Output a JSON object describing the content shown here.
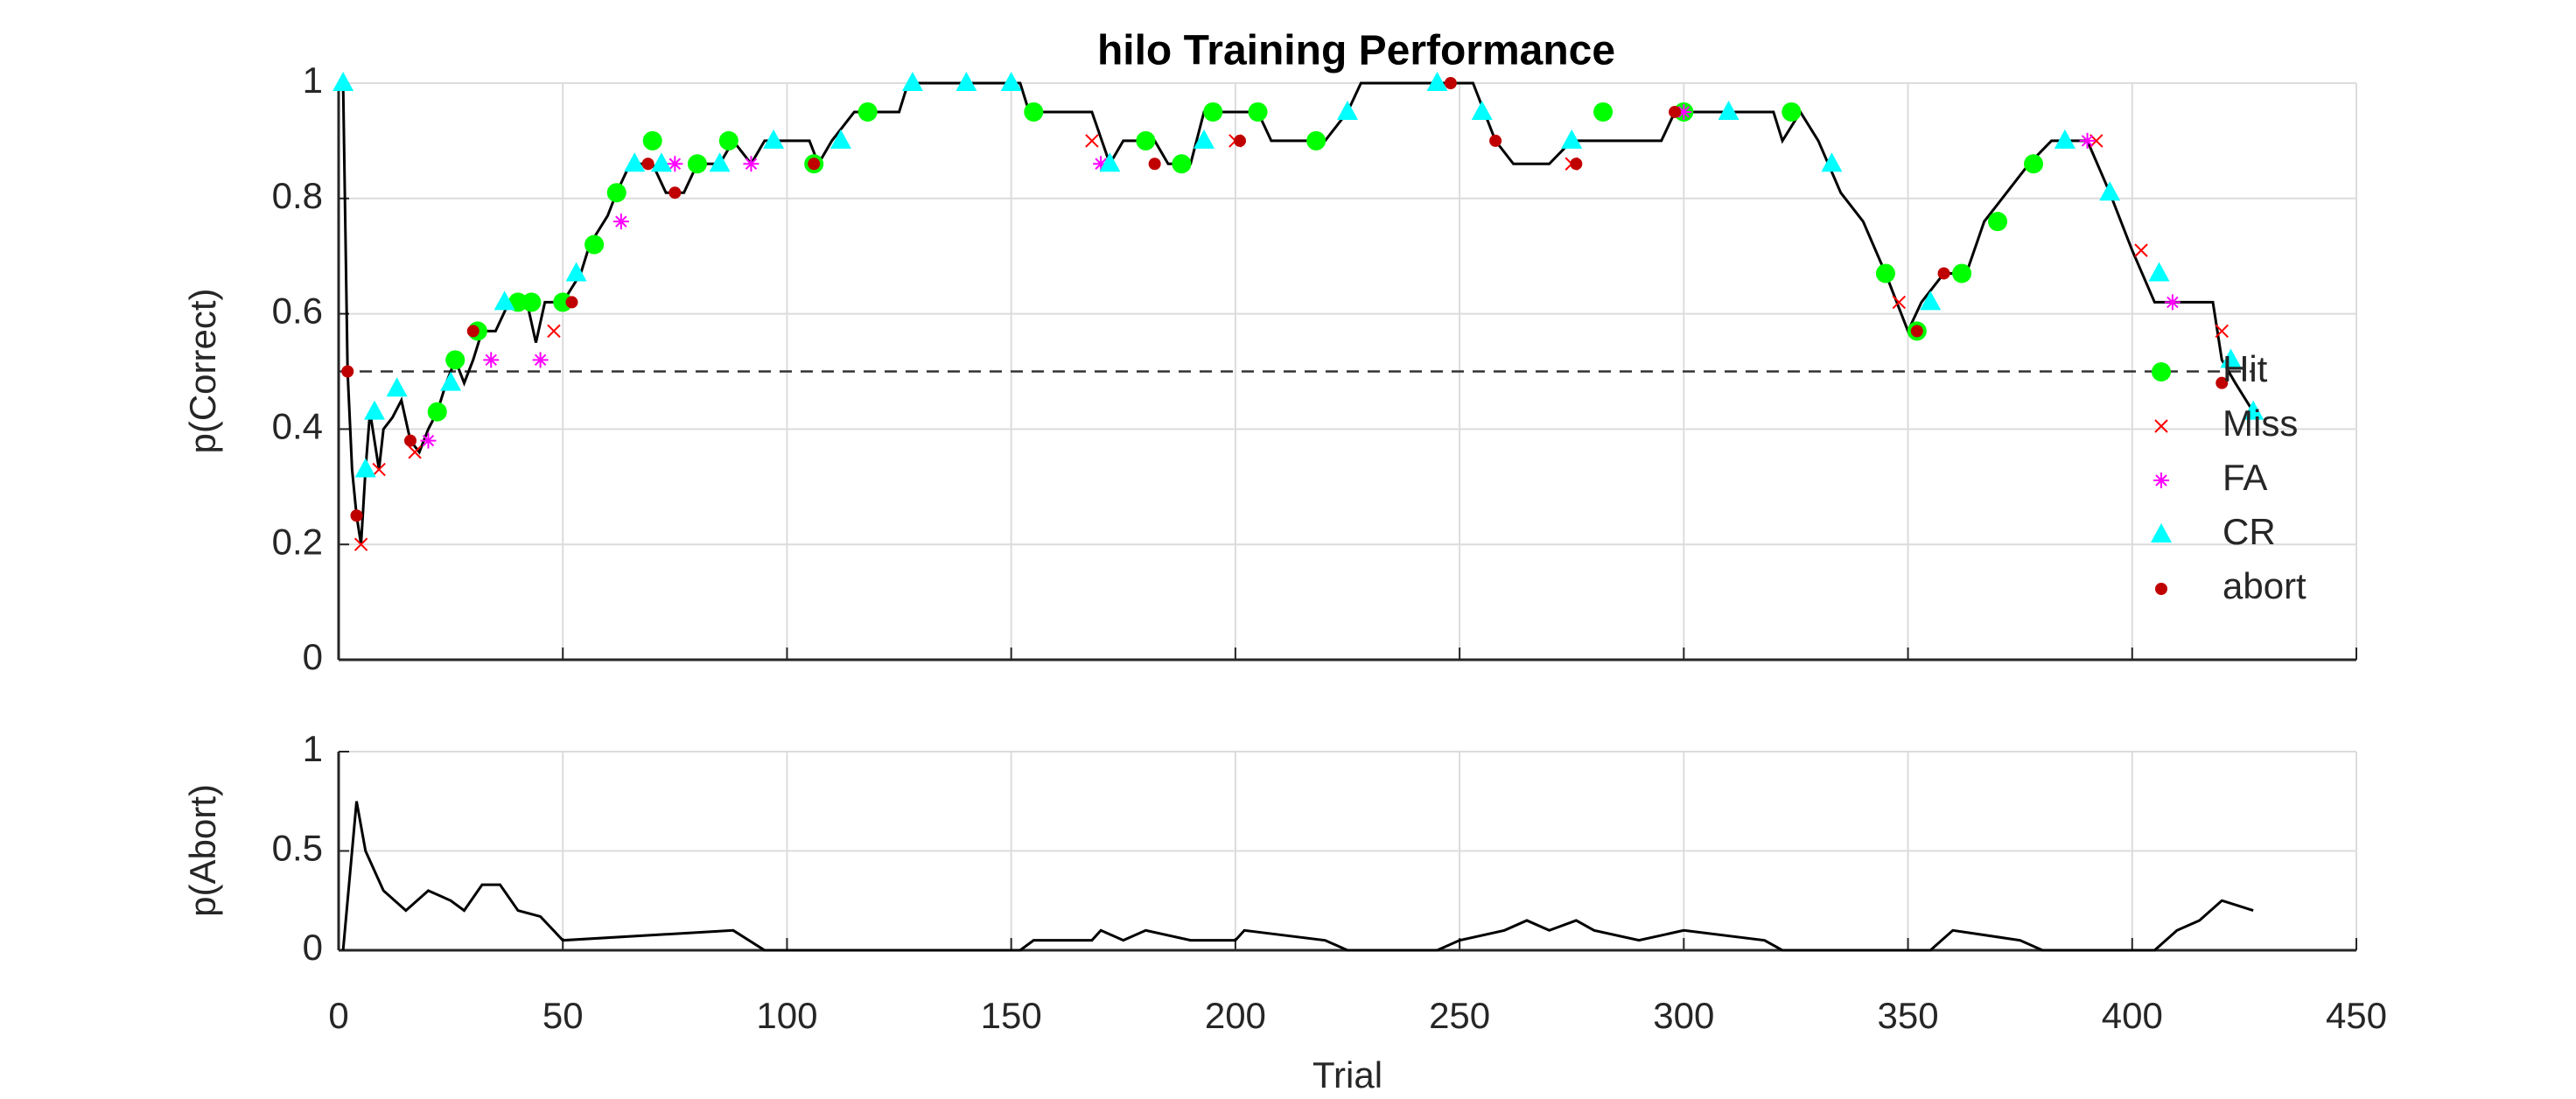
{
  "chart_data": [
    {
      "type": "line",
      "title": "hilo Training Performance",
      "ylabel": "p(Correct)",
      "xlim": [
        0,
        450
      ],
      "xticks": [
        0,
        50,
        100,
        150,
        200,
        250,
        300,
        350,
        400,
        450
      ],
      "ylim": [
        0,
        1
      ],
      "yticks": [
        0,
        0.2,
        0.4,
        0.6,
        0.8,
        1
      ],
      "grid": true,
      "legend": "right",
      "reference_line": 0.5,
      "color": "#000000",
      "x": [
        1,
        2,
        3,
        4,
        5,
        6,
        7,
        9,
        10,
        12,
        14,
        16,
        18,
        20,
        22,
        24,
        26,
        28,
        30,
        32,
        35,
        38,
        42,
        44,
        46,
        50,
        54,
        56,
        60,
        62,
        65,
        70,
        73,
        77,
        80,
        85,
        88,
        92,
        95,
        105,
        107,
        110,
        115,
        125,
        127,
        152,
        154,
        168,
        172,
        175,
        182,
        185,
        190,
        193,
        205,
        208,
        220,
        225,
        228,
        253,
        258,
        262,
        270,
        275,
        295,
        298,
        320,
        322,
        326,
        330,
        335,
        340,
        345,
        350,
        353,
        358,
        363,
        367,
        372,
        377,
        382,
        390,
        395,
        400,
        405,
        410,
        418,
        420,
        423,
        427
      ],
      "values": [
        1,
        0.5,
        0.33,
        0.25,
        0.2,
        0.33,
        0.43,
        0.33,
        0.4,
        0.42,
        0.45,
        0.38,
        0.36,
        0.4,
        0.43,
        0.48,
        0.52,
        0.48,
        0.52,
        0.57,
        0.57,
        0.62,
        0.62,
        0.55,
        0.62,
        0.62,
        0.67,
        0.72,
        0.77,
        0.81,
        0.86,
        0.86,
        0.81,
        0.81,
        0.86,
        0.86,
        0.9,
        0.86,
        0.9,
        0.9,
        0.86,
        0.9,
        0.95,
        0.95,
        1,
        1,
        0.95,
        0.95,
        0.86,
        0.9,
        0.9,
        0.86,
        0.86,
        0.95,
        0.95,
        0.9,
        0.9,
        0.95,
        1,
        1,
        0.9,
        0.86,
        0.86,
        0.9,
        0.9,
        0.95,
        0.95,
        0.9,
        0.95,
        0.9,
        0.81,
        0.76,
        0.67,
        0.57,
        0.62,
        0.67,
        0.67,
        0.76,
        0.81,
        0.86,
        0.9,
        0.9,
        0.81,
        0.71,
        0.62,
        0.62,
        0.62,
        0.52,
        0.48,
        0.43
      ],
      "series": [
        {
          "name": "Hit",
          "color": "#00ff00",
          "marker": "o",
          "x": [
            22,
            26,
            31,
            40,
            43,
            50,
            57,
            62,
            70,
            80,
            87,
            106,
            118,
            155,
            180,
            188,
            195,
            205,
            218,
            282,
            300,
            324,
            345,
            352,
            362,
            370,
            378
          ],
          "values": [
            0.43,
            0.52,
            0.57,
            0.62,
            0.62,
            0.62,
            0.72,
            0.81,
            0.9,
            0.86,
            0.9,
            0.86,
            0.95,
            0.95,
            0.9,
            0.86,
            0.95,
            0.95,
            0.9,
            0.95,
            0.95,
            0.95,
            0.67,
            0.57,
            0.67,
            0.76,
            0.86
          ]
        },
        {
          "name": "Miss",
          "color": "#ff0000",
          "marker": "x",
          "x": [
            5,
            9,
            17,
            48,
            168,
            200,
            275,
            348,
            392,
            402,
            420
          ],
          "values": [
            0.2,
            0.33,
            0.36,
            0.57,
            0.9,
            0.9,
            0.86,
            0.62,
            0.9,
            0.71,
            0.57
          ]
        },
        {
          "name": "FA",
          "color": "#ff00ff",
          "marker": "*",
          "x": [
            20,
            34,
            45,
            63,
            75,
            92,
            170,
            300,
            390,
            409
          ],
          "values": [
            0.38,
            0.52,
            0.52,
            0.76,
            0.86,
            0.86,
            0.86,
            0.95,
            0.9,
            0.62
          ]
        },
        {
          "name": "CR",
          "color": "#00ffff",
          "marker": "^",
          "x": [
            1,
            6,
            8,
            13,
            25,
            37,
            53,
            66,
            72,
            85,
            97,
            112,
            128,
            140,
            150,
            172,
            193,
            225,
            245,
            255,
            275,
            310,
            333,
            355,
            385,
            395,
            406,
            422,
            427
          ],
          "values": [
            1,
            0.33,
            0.43,
            0.47,
            0.48,
            0.62,
            0.67,
            0.86,
            0.86,
            0.86,
            0.9,
            0.9,
            1,
            1,
            1,
            0.86,
            0.9,
            0.95,
            1,
            0.95,
            0.9,
            0.95,
            0.86,
            0.62,
            0.9,
            0.81,
            0.67,
            0.52,
            0.43
          ]
        },
        {
          "name": "abort",
          "color": "#c00000",
          "marker": ".",
          "x": [
            2,
            4,
            16,
            30,
            52,
            69,
            75,
            106,
            182,
            201,
            248,
            258,
            276,
            298,
            352,
            358,
            420
          ],
          "values": [
            0.5,
            0.25,
            0.38,
            0.57,
            0.62,
            0.86,
            0.81,
            0.86,
            0.86,
            0.9,
            1,
            0.9,
            0.86,
            0.95,
            0.57,
            0.67,
            0.48
          ]
        }
      ]
    },
    {
      "type": "line",
      "ylabel": "p(Abort)",
      "xlabel": "Trial",
      "xlim": [
        0,
        450
      ],
      "xticks": [
        0,
        50,
        100,
        150,
        200,
        250,
        300,
        350,
        400,
        450
      ],
      "ylim": [
        0,
        1
      ],
      "yticks": [
        0,
        0.5,
        1
      ],
      "grid": true,
      "color": "#000000",
      "x": [
        1,
        4,
        6,
        10,
        15,
        20,
        25,
        28,
        32,
        36,
        40,
        45,
        50,
        88,
        95,
        152,
        155,
        168,
        170,
        175,
        180,
        190,
        200,
        202,
        220,
        225,
        245,
        250,
        260,
        265,
        270,
        276,
        280,
        290,
        300,
        318,
        322,
        355,
        360,
        375,
        380,
        405,
        410,
        415,
        420,
        427
      ],
      "values": [
        0,
        0.75,
        0.5,
        0.3,
        0.2,
        0.3,
        0.25,
        0.2,
        0.33,
        0.33,
        0.2,
        0.17,
        0.05,
        0.1,
        0,
        0,
        0.05,
        0.05,
        0.1,
        0.05,
        0.1,
        0.05,
        0.05,
        0.1,
        0.05,
        0,
        0,
        0.05,
        0.1,
        0.15,
        0.1,
        0.15,
        0.1,
        0.05,
        0.1,
        0.05,
        0,
        0,
        0.1,
        0.05,
        0,
        0,
        0.1,
        0.15,
        0.25,
        0.2
      ]
    }
  ]
}
